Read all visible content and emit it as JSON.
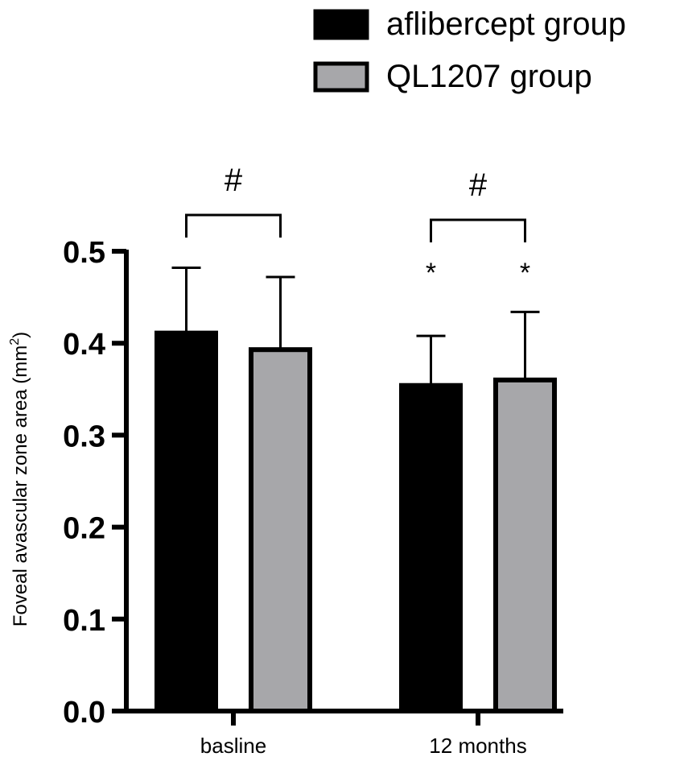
{
  "chart_data": {
    "type": "bar",
    "categories": [
      "basline",
      "12 months"
    ],
    "series": [
      {
        "name": "aflibercept group",
        "color": "#000000",
        "values": [
          0.411,
          0.354
        ],
        "error_upper": [
          0.482,
          0.408
        ]
      },
      {
        "name": "QL1207 group",
        "color": "#a7a7aa",
        "values": [
          0.393,
          0.36
        ],
        "error_upper": [
          0.472,
          0.434
        ]
      }
    ],
    "ylabel": "Foveal avascular zone area (mm",
    "ylabel_superscript": "2",
    "ylabel_suffix": ")",
    "ylim": [
      0.0,
      0.5
    ],
    "yticks": [
      "0.0",
      "0.1",
      "0.2",
      "0.3",
      "0.4",
      "0.5"
    ],
    "legend_position": "top-right",
    "significance": [
      {
        "category_index": 0,
        "label": "#"
      },
      {
        "category_index": 1,
        "label": "#"
      }
    ],
    "bar_annotations": [
      {
        "category_index": 1,
        "series_index": 0,
        "label": "*"
      },
      {
        "category_index": 1,
        "series_index": 1,
        "label": "*"
      }
    ]
  }
}
